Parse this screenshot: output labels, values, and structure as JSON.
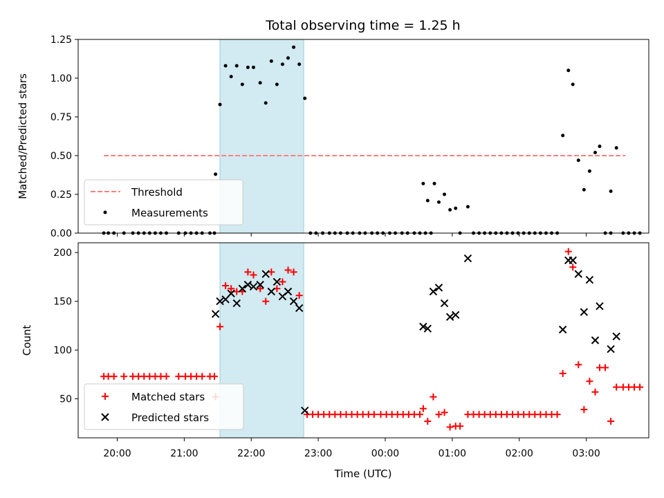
{
  "chart_data": [
    {
      "type": "scatter",
      "title": "Total observing time = 1.25 h",
      "xlabel": "",
      "ylabel": "Matched/Predicted stars",
      "ylim": [
        0,
        1.25
      ],
      "yticks": [
        "0.00",
        "0.25",
        "0.50",
        "0.75",
        "1.00",
        "1.25"
      ],
      "shaded_span": {
        "start": "21:32",
        "end": "22:47",
        "color": "#add8e6"
      },
      "threshold": {
        "name": "Threshold",
        "y": 0.5,
        "x_start": "19:48",
        "x_end": "03:35",
        "color": "#ff7f7f",
        "style": "dashed"
      },
      "series": [
        {
          "name": "Measurements",
          "color": "#000000",
          "marker": "dot",
          "points": [
            [
              "19:48",
              0
            ],
            [
              "19:52",
              0
            ],
            [
              "19:57",
              0
            ],
            [
              "20:06",
              0
            ],
            [
              "20:14",
              0
            ],
            [
              "20:19",
              0
            ],
            [
              "20:24",
              0
            ],
            [
              "20:29",
              0
            ],
            [
              "20:34",
              0
            ],
            [
              "20:39",
              0
            ],
            [
              "20:44",
              0
            ],
            [
              "20:55",
              0
            ],
            [
              "21:01",
              0
            ],
            [
              "21:06",
              0
            ],
            [
              "21:11",
              0
            ],
            [
              "21:16",
              0
            ],
            [
              "21:23",
              0
            ],
            [
              "21:27",
              0
            ],
            [
              "21:28",
              0.38
            ],
            [
              "21:32",
              0.83
            ],
            [
              "21:37",
              1.08
            ],
            [
              "21:42",
              1.01
            ],
            [
              "21:47",
              1.08
            ],
            [
              "21:52",
              0.96
            ],
            [
              "21:57",
              1.07
            ],
            [
              "22:02",
              1.07
            ],
            [
              "22:08",
              0.97
            ],
            [
              "22:13",
              0.84
            ],
            [
              "22:18",
              1.11
            ],
            [
              "22:23",
              0.96
            ],
            [
              "22:28",
              1.09
            ],
            [
              "22:33",
              1.13
            ],
            [
              "22:38",
              1.2
            ],
            [
              "22:43",
              1.09
            ],
            [
              "22:48",
              0.87
            ],
            [
              "22:53",
              0
            ],
            [
              "22:58",
              0
            ],
            [
              "23:04",
              0
            ],
            [
              "23:10",
              0
            ],
            [
              "23:15",
              0
            ],
            [
              "23:20",
              0
            ],
            [
              "23:26",
              0
            ],
            [
              "23:31",
              0
            ],
            [
              "23:37",
              0
            ],
            [
              "23:42",
              0
            ],
            [
              "23:48",
              0
            ],
            [
              "23:53",
              0
            ],
            [
              "23:58",
              0
            ],
            [
              "00:04",
              0
            ],
            [
              "00:09",
              0
            ],
            [
              "00:15",
              0
            ],
            [
              "00:20",
              0
            ],
            [
              "00:26",
              0
            ],
            [
              "00:31",
              0
            ],
            [
              "00:36",
              0
            ],
            [
              "00:41",
              0
            ],
            [
              "00:34",
              0.32
            ],
            [
              "00:38",
              0.21
            ],
            [
              "00:44",
              0.32
            ],
            [
              "00:48",
              0.2
            ],
            [
              "00:53",
              0.25
            ],
            [
              "00:58",
              0.15
            ],
            [
              "01:03",
              0.16
            ],
            [
              "01:07",
              0
            ],
            [
              "01:14",
              0.17
            ],
            [
              "01:19",
              0
            ],
            [
              "01:24",
              0
            ],
            [
              "01:29",
              0
            ],
            [
              "01:34",
              0
            ],
            [
              "01:39",
              0
            ],
            [
              "01:44",
              0
            ],
            [
              "01:49",
              0
            ],
            [
              "01:54",
              0
            ],
            [
              "01:59",
              0
            ],
            [
              "02:04",
              0
            ],
            [
              "02:09",
              0
            ],
            [
              "02:14",
              0
            ],
            [
              "02:19",
              0
            ],
            [
              "02:24",
              0
            ],
            [
              "02:29",
              0
            ],
            [
              "02:34",
              0
            ],
            [
              "02:39",
              0.63
            ],
            [
              "02:44",
              1.05
            ],
            [
              "02:48",
              0.96
            ],
            [
              "02:53",
              0.47
            ],
            [
              "02:58",
              0.28
            ],
            [
              "03:03",
              0.4
            ],
            [
              "03:08",
              0.52
            ],
            [
              "03:12",
              0.56
            ],
            [
              "03:17",
              0
            ],
            [
              "03:22",
              0.27
            ],
            [
              "03:27",
              0.55
            ],
            [
              "03:22",
              0
            ],
            [
              "03:33",
              0
            ],
            [
              "03:38",
              0
            ],
            [
              "03:43",
              0
            ],
            [
              "03:48",
              0
            ]
          ]
        }
      ],
      "legend": {
        "placement": "lower-left",
        "entries": [
          "Threshold",
          "Measurements"
        ]
      }
    },
    {
      "type": "scatter",
      "xlabel": "Time (UTC)",
      "ylabel": "Count",
      "ylim": [
        10,
        210
      ],
      "yticks": [
        "50",
        "100",
        "150",
        "200"
      ],
      "xticks": [
        "20:00",
        "21:00",
        "22:00",
        "23:00",
        "00:00",
        "01:00",
        "02:00",
        "03:00"
      ],
      "shaded_span": {
        "start": "21:32",
        "end": "22:47",
        "color": "#add8e6"
      },
      "series": [
        {
          "name": "Matched stars",
          "color": "#ff0000",
          "marker": "plus",
          "points": [
            [
              "19:48",
              73
            ],
            [
              "19:52",
              73
            ],
            [
              "19:57",
              73
            ],
            [
              "20:06",
              73
            ],
            [
              "20:14",
              73
            ],
            [
              "20:19",
              73
            ],
            [
              "20:24",
              73
            ],
            [
              "20:29",
              73
            ],
            [
              "20:34",
              73
            ],
            [
              "20:39",
              73
            ],
            [
              "20:44",
              73
            ],
            [
              "20:55",
              73
            ],
            [
              "21:01",
              73
            ],
            [
              "21:06",
              73
            ],
            [
              "21:11",
              73
            ],
            [
              "21:16",
              73
            ],
            [
              "21:23",
              73
            ],
            [
              "21:27",
              73
            ],
            [
              "21:28",
              52
            ],
            [
              "21:32",
              124
            ],
            [
              "21:37",
              166
            ],
            [
              "21:42",
              163
            ],
            [
              "21:47",
              160
            ],
            [
              "21:52",
              160
            ],
            [
              "21:57",
              180
            ],
            [
              "22:02",
              177
            ],
            [
              "22:08",
              163
            ],
            [
              "22:13",
              150
            ],
            [
              "22:18",
              180
            ],
            [
              "22:23",
              163
            ],
            [
              "22:28",
              170
            ],
            [
              "22:33",
              182
            ],
            [
              "22:38",
              180
            ],
            [
              "22:43",
              156
            ],
            [
              "22:50",
              34
            ],
            [
              "22:55",
              34
            ],
            [
              "23:00",
              34
            ],
            [
              "23:05",
              34
            ],
            [
              "23:10",
              34
            ],
            [
              "23:15",
              34
            ],
            [
              "23:20",
              34
            ],
            [
              "23:25",
              34
            ],
            [
              "23:30",
              34
            ],
            [
              "23:35",
              34
            ],
            [
              "23:40",
              34
            ],
            [
              "23:45",
              34
            ],
            [
              "23:50",
              34
            ],
            [
              "23:56",
              34
            ],
            [
              "00:01",
              34
            ],
            [
              "00:06",
              34
            ],
            [
              "00:11",
              34
            ],
            [
              "00:16",
              34
            ],
            [
              "00:21",
              34
            ],
            [
              "00:26",
              34
            ],
            [
              "00:31",
              34
            ],
            [
              "00:34",
              40
            ],
            [
              "00:38",
              27
            ],
            [
              "00:43",
              52
            ],
            [
              "00:48",
              34
            ],
            [
              "00:53",
              36
            ],
            [
              "00:58",
              21
            ],
            [
              "01:03",
              22
            ],
            [
              "01:07",
              22
            ],
            [
              "01:14",
              34
            ],
            [
              "01:19",
              34
            ],
            [
              "01:24",
              34
            ],
            [
              "01:29",
              34
            ],
            [
              "01:34",
              34
            ],
            [
              "01:39",
              34
            ],
            [
              "01:44",
              34
            ],
            [
              "01:49",
              34
            ],
            [
              "01:54",
              34
            ],
            [
              "01:59",
              34
            ],
            [
              "02:04",
              34
            ],
            [
              "02:09",
              34
            ],
            [
              "02:14",
              34
            ],
            [
              "02:19",
              34
            ],
            [
              "02:24",
              34
            ],
            [
              "02:29",
              34
            ],
            [
              "02:34",
              34
            ],
            [
              "02:39",
              76
            ],
            [
              "02:44",
              201
            ],
            [
              "02:48",
              185
            ],
            [
              "02:53",
              85
            ],
            [
              "02:58",
              39
            ],
            [
              "03:03",
              68
            ],
            [
              "03:08",
              57
            ],
            [
              "03:12",
              82
            ],
            [
              "03:17",
              82
            ],
            [
              "03:22",
              27
            ],
            [
              "03:27",
              62
            ],
            [
              "03:33",
              62
            ],
            [
              "03:38",
              62
            ],
            [
              "03:43",
              62
            ],
            [
              "03:48",
              62
            ]
          ]
        },
        {
          "name": "Predicted stars",
          "color": "#000000",
          "marker": "x",
          "points": [
            [
              "21:28",
              137
            ],
            [
              "21:32",
              150
            ],
            [
              "21:37",
              152
            ],
            [
              "21:42",
              158
            ],
            [
              "21:47",
              148
            ],
            [
              "21:52",
              163
            ],
            [
              "21:57",
              167
            ],
            [
              "22:02",
              165
            ],
            [
              "22:08",
              167
            ],
            [
              "22:13",
              178
            ],
            [
              "22:18",
              160
            ],
            [
              "22:23",
              170
            ],
            [
              "22:28",
              155
            ],
            [
              "22:33",
              160
            ],
            [
              "22:38",
              150
            ],
            [
              "22:43",
              143
            ],
            [
              "22:48",
              38
            ],
            [
              "00:34",
              124
            ],
            [
              "00:38",
              122
            ],
            [
              "00:43",
              160
            ],
            [
              "00:48",
              164
            ],
            [
              "00:53",
              148
            ],
            [
              "00:58",
              134
            ],
            [
              "01:03",
              136
            ],
            [
              "01:14",
              194
            ],
            [
              "02:39",
              121
            ],
            [
              "02:44",
              192
            ],
            [
              "02:48",
              192
            ],
            [
              "02:53",
              178
            ],
            [
              "02:58",
              139
            ],
            [
              "03:03",
              172
            ],
            [
              "03:08",
              110
            ],
            [
              "03:12",
              145
            ],
            [
              "03:22",
              101
            ],
            [
              "03:27",
              114
            ]
          ]
        }
      ],
      "legend": {
        "placement": "lower-left",
        "entries": [
          "Matched stars",
          "Predicted stars"
        ]
      }
    }
  ]
}
